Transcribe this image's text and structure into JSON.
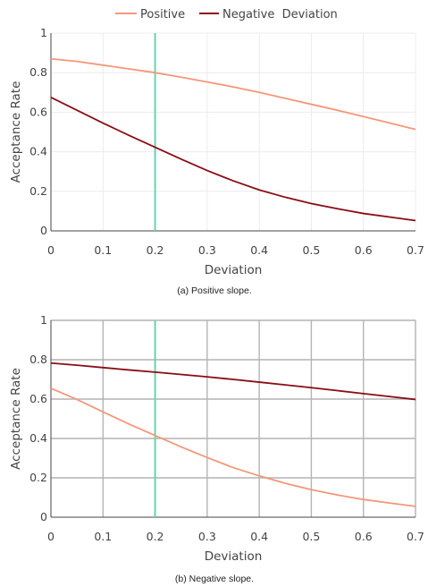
{
  "legend": {
    "items": [
      {
        "label": "Positive",
        "color": "#f4977a"
      },
      {
        "label": "Negative  Deviation",
        "color": "#8b0c16"
      }
    ]
  },
  "colors": {
    "positive": "#f4977a",
    "negative": "#8b0c16",
    "threshold": "#6fcfae",
    "axis": "#444444"
  },
  "chart_data": [
    {
      "type": "line",
      "caption": "(a) Positive slope.",
      "xlabel": "Deviation",
      "ylabel": "Acceptance Rate",
      "xlim": [
        0,
        0.7
      ],
      "ylim": [
        0,
        1
      ],
      "x_ticks": [
        "0",
        "0.1",
        "0.2",
        "0.3",
        "0.4",
        "0.5",
        "0.6",
        "0.7"
      ],
      "y_ticks": [
        "0",
        "0.2",
        "0.4",
        "0.6",
        "0.8",
        "1"
      ],
      "grid": "light",
      "vline": {
        "x": 0.2,
        "y_range": [
          0,
          1
        ]
      },
      "x": [
        0,
        0.05,
        0.1,
        0.15,
        0.2,
        0.25,
        0.3,
        0.35,
        0.4,
        0.45,
        0.5,
        0.55,
        0.6,
        0.65,
        0.7
      ],
      "series": [
        {
          "name": "Positive",
          "values": [
            0.87,
            0.857,
            0.838,
            0.819,
            0.8,
            0.777,
            0.753,
            0.728,
            0.7,
            0.67,
            0.64,
            0.61,
            0.578,
            0.546,
            0.513
          ]
        },
        {
          "name": "Negative  Deviation",
          "values": [
            0.675,
            0.61,
            0.545,
            0.483,
            0.423,
            0.363,
            0.305,
            0.253,
            0.207,
            0.17,
            0.138,
            0.112,
            0.088,
            0.07,
            0.052
          ]
        }
      ]
    },
    {
      "type": "line",
      "caption": "(b) Negative slope.",
      "xlabel": "Deviation",
      "ylabel": "Acceptance Rate",
      "xlim": [
        0,
        0.7
      ],
      "ylim": [
        0,
        1
      ],
      "x_ticks": [
        "0",
        "0.1",
        "0.2",
        "0.3",
        "0.4",
        "0.5",
        "0.6",
        "0.7"
      ],
      "y_ticks": [
        "0",
        "0.2",
        "0.4",
        "0.6",
        "0.8",
        "1"
      ],
      "grid": "dark",
      "vline": {
        "x": 0.2,
        "y_range": [
          0,
          1
        ]
      },
      "x": [
        0,
        0.05,
        0.1,
        0.15,
        0.2,
        0.25,
        0.3,
        0.35,
        0.4,
        0.45,
        0.5,
        0.55,
        0.6,
        0.65,
        0.7
      ],
      "series": [
        {
          "name": "Positive",
          "values": [
            0.655,
            0.598,
            0.535,
            0.473,
            0.415,
            0.357,
            0.303,
            0.252,
            0.21,
            0.172,
            0.14,
            0.113,
            0.09,
            0.072,
            0.055
          ]
        },
        {
          "name": "Negative  Deviation",
          "values": [
            0.783,
            0.772,
            0.76,
            0.748,
            0.737,
            0.725,
            0.713,
            0.7,
            0.686,
            0.672,
            0.658,
            0.643,
            0.628,
            0.613,
            0.598
          ]
        }
      ]
    }
  ]
}
